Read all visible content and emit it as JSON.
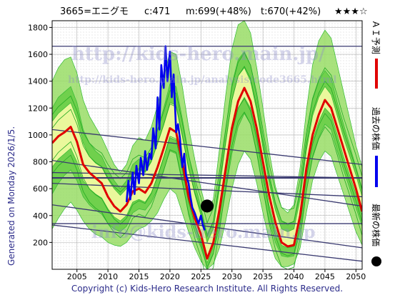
{
  "header": {
    "ticker": "3665=エニグモ",
    "current": "c:471",
    "model": "m:699(+48%)",
    "target": "t:670(+42%)",
    "stars": "★★★☆"
  },
  "side_label": "Generated on Monday 2026/1/5.",
  "footer": "Copyright (c) Kids-Hero Research Institute. All Rights Reserved.",
  "watermarks": [
    "http://kids-hero.main.jp/",
    "http://kids-hero.main.jp/analysis/code3665.html",
    "info@kids-hero.main.jp"
  ],
  "legend": [
    {
      "label": "ＡＩ予測",
      "color": "#e00000",
      "marker": "line"
    },
    {
      "label": "過去の株価",
      "color": "#0000ee",
      "marker": "line"
    },
    {
      "label": "最新の株価",
      "color": "#000000",
      "marker": "dot"
    }
  ],
  "colors": {
    "ai": "#e00000",
    "past": "#0000ee",
    "latest": "#000000",
    "band_dark": "#33bb33",
    "band_mid": "#99dd66",
    "band_light": "#ffffaa",
    "trend": "#3a3a70"
  },
  "chart_data": {
    "type": "line",
    "xlim": [
      2001,
      2051
    ],
    "ylim": [
      0,
      1850
    ],
    "x_ticks": [
      2005,
      2010,
      2015,
      2020,
      2025,
      2030,
      2035,
      2040,
      2045,
      2050
    ],
    "y_ticks": [
      200,
      400,
      600,
      800,
      1000,
      1200,
      1400,
      1600,
      1800
    ],
    "grid": true,
    "legend_position": "right",
    "series": [
      {
        "key": "ai",
        "x": [
          2001,
          2002,
          2003,
          2004,
          2005,
          2006,
          2007,
          2008,
          2009,
          2010,
          2011,
          2012,
          2013,
          2014,
          2015,
          2016,
          2017,
          2018,
          2019,
          2020,
          2021,
          2022,
          2023,
          2024,
          2025,
          2026,
          2027,
          2028,
          2029,
          2030,
          2031,
          2032,
          2033,
          2034,
          2035,
          2036,
          2037,
          2038,
          2039,
          2040,
          2041,
          2042,
          2043,
          2044,
          2045,
          2046,
          2047,
          2048,
          2049,
          2050,
          2051
        ],
        "values": [
          940,
          990,
          1020,
          1060,
          950,
          780,
          720,
          680,
          640,
          540,
          470,
          430,
          480,
          580,
          600,
          570,
          640,
          760,
          900,
          1050,
          1020,
          800,
          540,
          380,
          260,
          80,
          200,
          450,
          750,
          1050,
          1250,
          1350,
          1250,
          1050,
          800,
          550,
          350,
          200,
          170,
          180,
          400,
          750,
          1000,
          1150,
          1260,
          1200,
          1050,
          900,
          750,
          600,
          430
        ]
      },
      {
        "key": "past",
        "x": [
          2013.0,
          2013.3,
          2013.6,
          2014.0,
          2014.3,
          2014.6,
          2015.0,
          2015.3,
          2015.7,
          2016.0,
          2016.3,
          2016.7,
          2017.0,
          2017.3,
          2017.7,
          2018.0,
          2018.3,
          2018.6,
          2019.0,
          2019.3,
          2019.6,
          2020.0,
          2020.3,
          2020.6,
          2021.0,
          2021.3,
          2021.6,
          2022.0,
          2022.3,
          2022.6,
          2023.0,
          2023.3,
          2023.6,
          2024.0,
          2024.3,
          2024.6,
          2025.0,
          2025.3,
          2025.6
        ],
        "values": [
          500,
          660,
          520,
          720,
          560,
          770,
          640,
          830,
          700,
          880,
          740,
          860,
          820,
          1050,
          900,
          1280,
          1040,
          1520,
          1350,
          1660,
          1400,
          1620,
          1280,
          1450,
          1020,
          1080,
          980,
          760,
          860,
          700,
          640,
          540,
          460,
          420,
          380,
          340,
          400,
          330,
          290
        ]
      },
      {
        "key": "latest",
        "x": [
          2026.0
        ],
        "values": [
          471
        ]
      }
    ],
    "trendlines": [
      {
        "x": [
          2001,
          2051
        ],
        "values": [
          1040,
          780
        ]
      },
      {
        "x": [
          2001,
          2051
        ],
        "values": [
          810,
          470
        ]
      },
      {
        "x": [
          2001,
          2051
        ],
        "values": [
          720,
          680
        ]
      },
      {
        "x": [
          2001,
          2051
        ],
        "values": [
          680,
          680
        ]
      },
      {
        "x": [
          2001,
          2051
        ],
        "values": [
          640,
          540
        ]
      },
      {
        "x": [
          2001,
          2051
        ],
        "values": [
          480,
          160
        ]
      },
      {
        "x": [
          2001,
          2051
        ],
        "values": [
          330,
          60
        ]
      },
      {
        "x": [
          2001,
          2051
        ],
        "values": [
          1660,
          1660
        ]
      },
      {
        "x": [
          2001,
          2051
        ],
        "values": [
          340,
          340
        ]
      }
    ],
    "bands": {
      "x": [
        2001,
        2002,
        2003,
        2004,
        2005,
        2006,
        2007,
        2008,
        2009,
        2010,
        2011,
        2012,
        2013,
        2014,
        2015,
        2016,
        2017,
        2018,
        2019,
        2020,
        2021,
        2022,
        2023,
        2024,
        2025,
        2026,
        2027,
        2028,
        2029,
        2030,
        2031,
        2032,
        2033,
        2034,
        2035,
        2036,
        2037,
        2038,
        2039,
        2040,
        2041,
        2042,
        2043,
        2044,
        2045,
        2046,
        2047,
        2048,
        2049,
        2050,
        2051
      ],
      "outer_low": [
        300,
        380,
        450,
        500,
        440,
        360,
        300,
        260,
        240,
        200,
        180,
        170,
        200,
        260,
        300,
        320,
        360,
        420,
        520,
        600,
        560,
        420,
        280,
        160,
        60,
        0,
        40,
        160,
        360,
        600,
        780,
        880,
        820,
        640,
        420,
        220,
        80,
        20,
        20,
        40,
        160,
        420,
        660,
        800,
        880,
        840,
        700,
        560,
        420,
        280,
        180
      ],
      "outer_high": [
        1400,
        1500,
        1560,
        1580,
        1460,
        1260,
        1140,
        1060,
        980,
        880,
        780,
        720,
        780,
        920,
        980,
        960,
        1060,
        1220,
        1420,
        1620,
        1600,
        1360,
        1060,
        820,
        600,
        420,
        520,
        900,
        1300,
        1640,
        1820,
        1850,
        1760,
        1500,
        1200,
        880,
        620,
        460,
        420,
        480,
        760,
        1180,
        1520,
        1700,
        1780,
        1720,
        1520,
        1320,
        1120,
        920,
        760
      ],
      "mid_low": [
        560,
        640,
        700,
        740,
        660,
        540,
        480,
        440,
        410,
        340,
        300,
        280,
        320,
        420,
        450,
        440,
        500,
        600,
        740,
        880,
        860,
        640,
        420,
        280,
        160,
        20,
        120,
        320,
        580,
        860,
        1060,
        1160,
        1080,
        860,
        600,
        360,
        200,
        100,
        90,
        100,
        280,
        580,
        840,
        980,
        1080,
        1040,
        880,
        740,
        600,
        460,
        320
      ],
      "mid_high": [
        1200,
        1280,
        1320,
        1360,
        1240,
        1040,
        940,
        880,
        840,
        740,
        660,
        600,
        660,
        780,
        820,
        800,
        880,
        1040,
        1200,
        1380,
        1360,
        1120,
        860,
        640,
        460,
        260,
        360,
        680,
        1040,
        1380,
        1560,
        1620,
        1520,
        1280,
        1000,
        720,
        500,
        360,
        330,
        360,
        600,
        980,
        1260,
        1400,
        1480,
        1420,
        1240,
        1080,
        920,
        760,
        600
      ],
      "light_low": [
        760,
        820,
        860,
        900,
        800,
        660,
        600,
        560,
        530,
        450,
        390,
        360,
        400,
        500,
        520,
        500,
        570,
        690,
        830,
        980,
        960,
        740,
        500,
        340,
        220,
        50,
        170,
        420,
        720,
        1020,
        1200,
        1280,
        1200,
        1000,
        740,
        480,
        300,
        180,
        160,
        170,
        380,
        720,
        960,
        1100,
        1200,
        1150,
        1000,
        840,
        700,
        560,
        400
      ],
      "light_high": [
        1100,
        1160,
        1200,
        1240,
        1120,
        940,
        840,
        790,
        760,
        670,
        600,
        550,
        600,
        700,
        740,
        720,
        800,
        940,
        1080,
        1240,
        1220,
        1000,
        760,
        560,
        400,
        200,
        300,
        600,
        940,
        1260,
        1440,
        1500,
        1400,
        1180,
        900,
        640,
        440,
        300,
        280,
        300,
        520,
        880,
        1140,
        1280,
        1360,
        1300,
        1140,
        980,
        840,
        700,
        540
      ]
    }
  }
}
